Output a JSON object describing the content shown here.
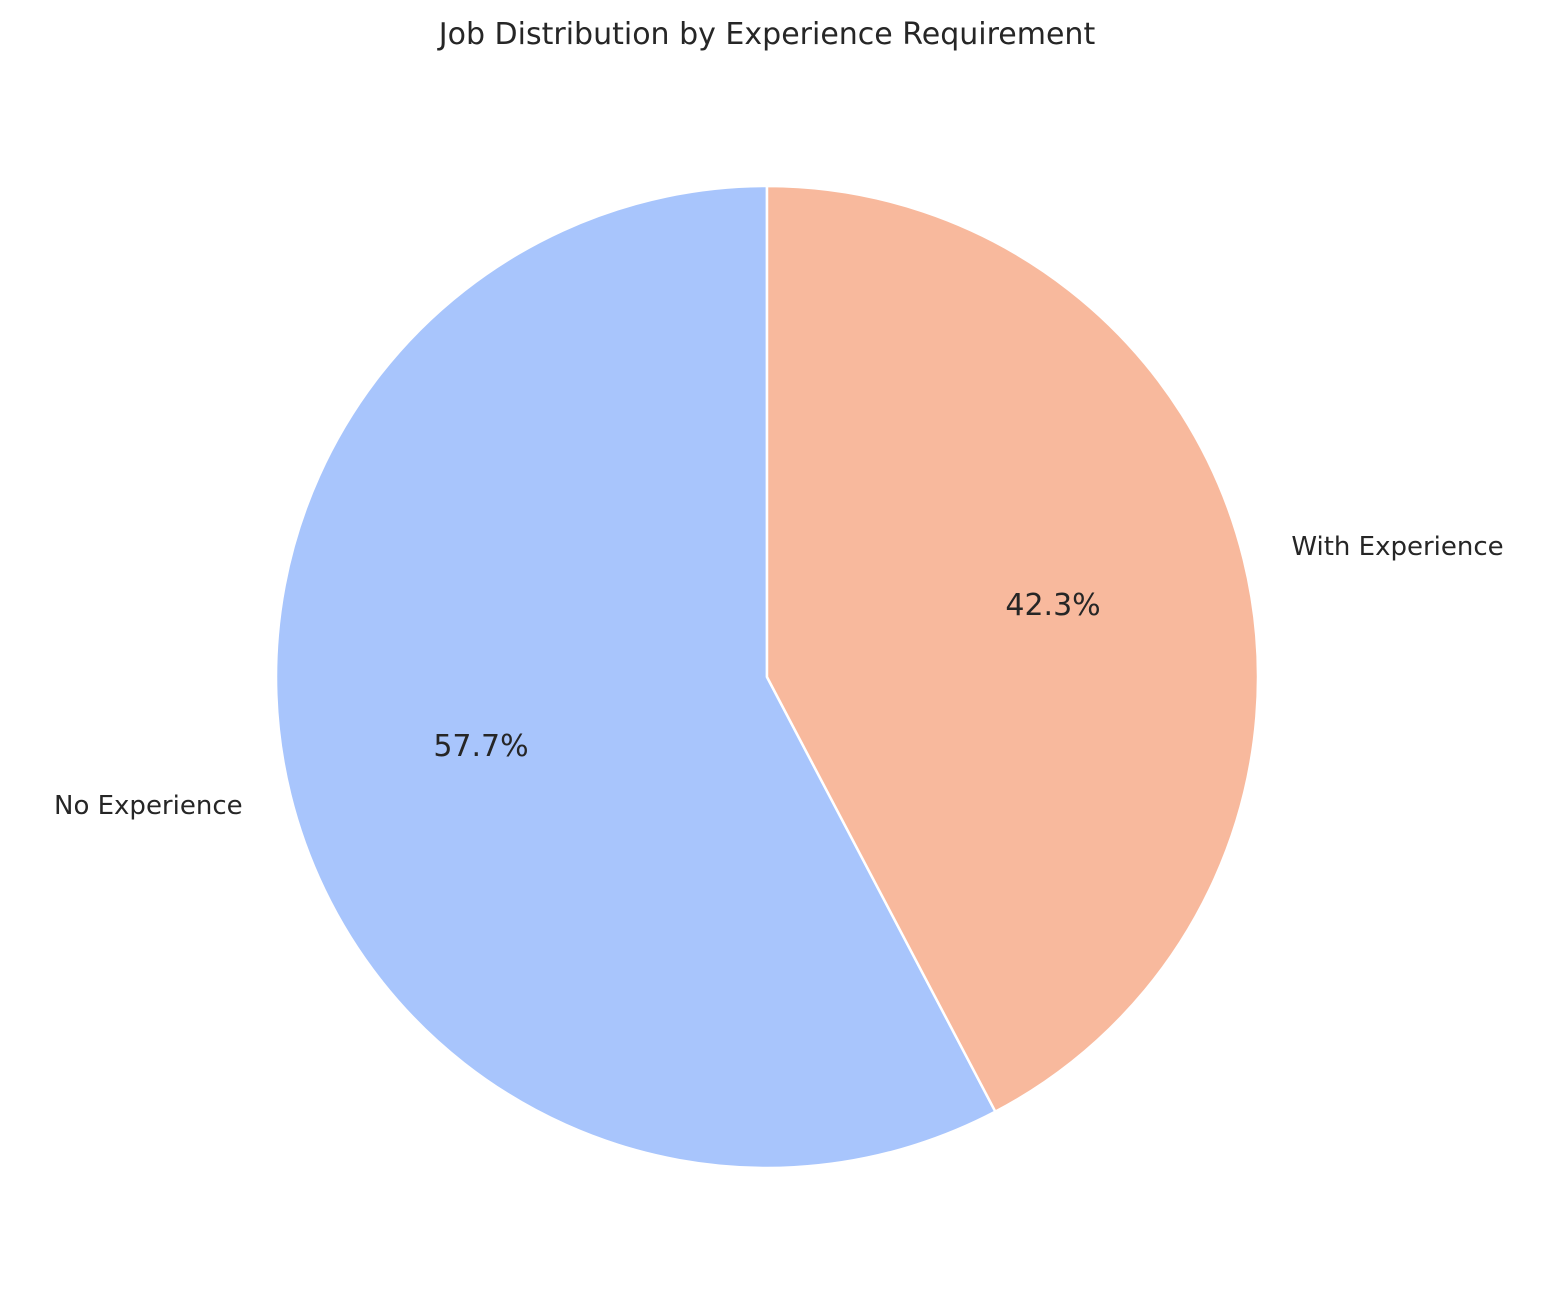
{
  "chart_data": {
    "type": "pie",
    "title": "Job Distribution by Experience Requirement",
    "categories": [
      "No Experience",
      "With Experience"
    ],
    "values": [
      57.7,
      42.3
    ],
    "value_labels": [
      "57.7%",
      "42.3%"
    ],
    "colors": [
      "#a8c5fc",
      "#f8b99d"
    ],
    "start_angle_deg": 90,
    "direction": "counterclockwise",
    "slice_edge_color": "#ffffff"
  }
}
